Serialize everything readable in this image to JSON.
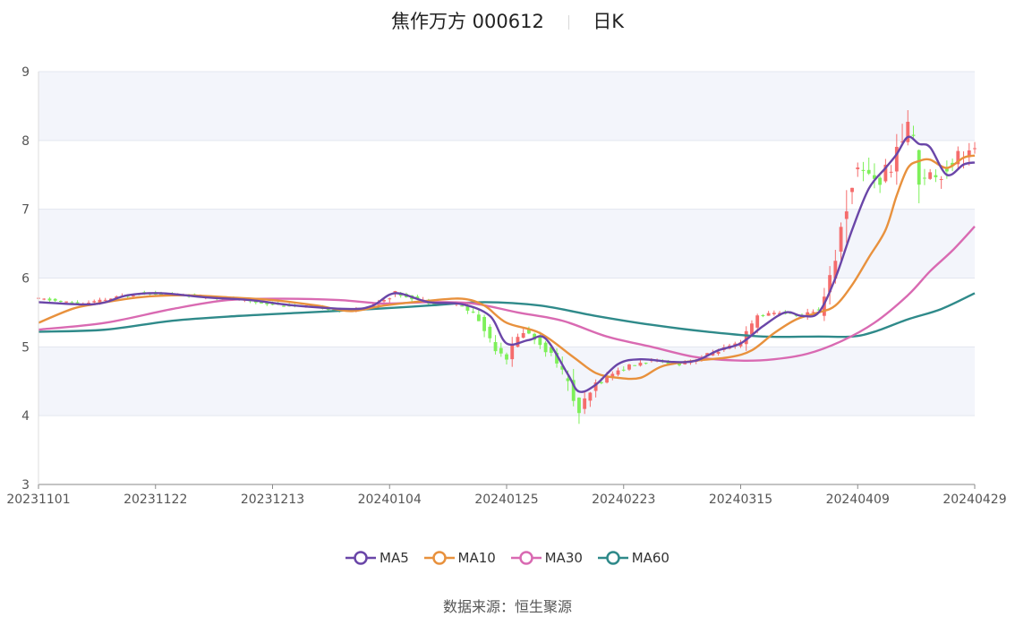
{
  "title": {
    "name": "焦作万方",
    "code": "000612",
    "period": "日K"
  },
  "source_label": "数据来源：",
  "source_name": "恒生聚源",
  "colors": {
    "up": "#f56c6c",
    "down": "#7ef05a",
    "ma5": "#6a46a8",
    "ma10": "#e8913d",
    "ma30": "#d96ab2",
    "ma60": "#2f8a8a",
    "band": "#f3f5fb",
    "grid": "#e3e6ef"
  },
  "chart_data": {
    "type": "candlestick",
    "title": "焦作万方 000612 日K",
    "ylim": [
      3,
      9
    ],
    "yticks": [
      "3",
      "4",
      "5",
      "6",
      "7",
      "8",
      "9"
    ],
    "xticks": [
      "20231101",
      "20231122",
      "20231213",
      "20240104",
      "20240125",
      "20240223",
      "20240315",
      "20240409",
      "20240429"
    ],
    "xtick_index": [
      0,
      21,
      42,
      63,
      84,
      105,
      126,
      147,
      168
    ],
    "n_days": 169,
    "legend": [
      "MA5",
      "MA10",
      "MA30",
      "MA60"
    ],
    "ohlc_keypoints": [
      [
        0,
        5.7
      ],
      [
        8,
        5.62
      ],
      [
        18,
        5.78
      ],
      [
        28,
        5.75
      ],
      [
        36,
        5.68
      ],
      [
        44,
        5.6
      ],
      [
        50,
        5.58
      ],
      [
        55,
        5.52
      ],
      [
        60,
        5.6
      ],
      [
        64,
        5.78
      ],
      [
        70,
        5.65
      ],
      [
        75,
        5.62
      ],
      [
        78,
        5.5
      ],
      [
        82,
        5.0
      ],
      [
        84,
        4.85
      ],
      [
        87,
        5.25
      ],
      [
        90,
        5.05
      ],
      [
        93,
        4.8
      ],
      [
        95,
        4.45
      ],
      [
        97,
        4.05
      ],
      [
        100,
        4.45
      ],
      [
        103,
        4.62
      ],
      [
        106,
        4.72
      ],
      [
        110,
        4.8
      ],
      [
        115,
        4.75
      ],
      [
        118,
        4.82
      ],
      [
        122,
        4.95
      ],
      [
        126,
        5.05
      ],
      [
        129,
        5.45
      ],
      [
        133,
        5.5
      ],
      [
        137,
        5.45
      ],
      [
        140,
        5.55
      ],
      [
        143,
        6.3
      ],
      [
        146,
        7.5
      ],
      [
        148,
        7.6
      ],
      [
        151,
        7.4
      ],
      [
        154,
        7.8
      ],
      [
        156,
        8.3
      ],
      [
        158,
        7.5
      ],
      [
        162,
        7.5
      ],
      [
        165,
        7.8
      ],
      [
        168,
        7.85
      ]
    ],
    "ma5_keypoints": [
      [
        0,
        5.65
      ],
      [
        10,
        5.62
      ],
      [
        16,
        5.75
      ],
      [
        22,
        5.78
      ],
      [
        30,
        5.72
      ],
      [
        38,
        5.68
      ],
      [
        46,
        5.6
      ],
      [
        56,
        5.55
      ],
      [
        60,
        5.6
      ],
      [
        64,
        5.78
      ],
      [
        70,
        5.65
      ],
      [
        76,
        5.62
      ],
      [
        81,
        5.45
      ],
      [
        84,
        5.05
      ],
      [
        88,
        5.1
      ],
      [
        91,
        5.12
      ],
      [
        95,
        4.6
      ],
      [
        97,
        4.35
      ],
      [
        100,
        4.45
      ],
      [
        104,
        4.75
      ],
      [
        108,
        4.82
      ],
      [
        114,
        4.78
      ],
      [
        118,
        4.8
      ],
      [
        122,
        4.95
      ],
      [
        126,
        5.05
      ],
      [
        130,
        5.3
      ],
      [
        134,
        5.5
      ],
      [
        137,
        5.45
      ],
      [
        140,
        5.5
      ],
      [
        143,
        6.0
      ],
      [
        146,
        6.7
      ],
      [
        149,
        7.3
      ],
      [
        152,
        7.6
      ],
      [
        154,
        7.8
      ],
      [
        156,
        8.05
      ],
      [
        158,
        7.95
      ],
      [
        160,
        7.9
      ],
      [
        163,
        7.5
      ],
      [
        166,
        7.65
      ],
      [
        168,
        7.68
      ]
    ],
    "ma10_keypoints": [
      [
        0,
        5.35
      ],
      [
        6,
        5.55
      ],
      [
        10,
        5.62
      ],
      [
        18,
        5.72
      ],
      [
        26,
        5.75
      ],
      [
        34,
        5.72
      ],
      [
        42,
        5.68
      ],
      [
        50,
        5.6
      ],
      [
        56,
        5.52
      ],
      [
        62,
        5.6
      ],
      [
        70,
        5.67
      ],
      [
        76,
        5.7
      ],
      [
        80,
        5.6
      ],
      [
        84,
        5.35
      ],
      [
        90,
        5.2
      ],
      [
        96,
        4.85
      ],
      [
        100,
        4.62
      ],
      [
        104,
        4.55
      ],
      [
        108,
        4.55
      ],
      [
        112,
        4.72
      ],
      [
        118,
        4.8
      ],
      [
        124,
        4.85
      ],
      [
        128,
        4.95
      ],
      [
        132,
        5.2
      ],
      [
        136,
        5.4
      ],
      [
        140,
        5.5
      ],
      [
        143,
        5.6
      ],
      [
        146,
        5.9
      ],
      [
        149,
        6.3
      ],
      [
        152,
        6.7
      ],
      [
        154,
        7.2
      ],
      [
        156,
        7.6
      ],
      [
        158,
        7.7
      ],
      [
        160,
        7.72
      ],
      [
        163,
        7.6
      ],
      [
        166,
        7.75
      ],
      [
        168,
        7.78
      ]
    ],
    "ma30_keypoints": [
      [
        0,
        5.25
      ],
      [
        12,
        5.35
      ],
      [
        24,
        5.55
      ],
      [
        34,
        5.68
      ],
      [
        44,
        5.7
      ],
      [
        54,
        5.68
      ],
      [
        62,
        5.63
      ],
      [
        70,
        5.65
      ],
      [
        78,
        5.63
      ],
      [
        86,
        5.5
      ],
      [
        94,
        5.38
      ],
      [
        102,
        5.15
      ],
      [
        110,
        5.0
      ],
      [
        118,
        4.85
      ],
      [
        126,
        4.8
      ],
      [
        132,
        4.82
      ],
      [
        138,
        4.9
      ],
      [
        144,
        5.08
      ],
      [
        150,
        5.35
      ],
      [
        156,
        5.75
      ],
      [
        160,
        6.1
      ],
      [
        164,
        6.4
      ],
      [
        168,
        6.75
      ]
    ],
    "ma60_keypoints": [
      [
        0,
        5.22
      ],
      [
        12,
        5.25
      ],
      [
        24,
        5.38
      ],
      [
        36,
        5.45
      ],
      [
        48,
        5.5
      ],
      [
        60,
        5.55
      ],
      [
        70,
        5.6
      ],
      [
        80,
        5.65
      ],
      [
        90,
        5.6
      ],
      [
        100,
        5.45
      ],
      [
        110,
        5.32
      ],
      [
        120,
        5.22
      ],
      [
        130,
        5.15
      ],
      [
        140,
        5.15
      ],
      [
        146,
        5.15
      ],
      [
        150,
        5.22
      ],
      [
        156,
        5.4
      ],
      [
        162,
        5.55
      ],
      [
        168,
        5.78
      ]
    ]
  }
}
